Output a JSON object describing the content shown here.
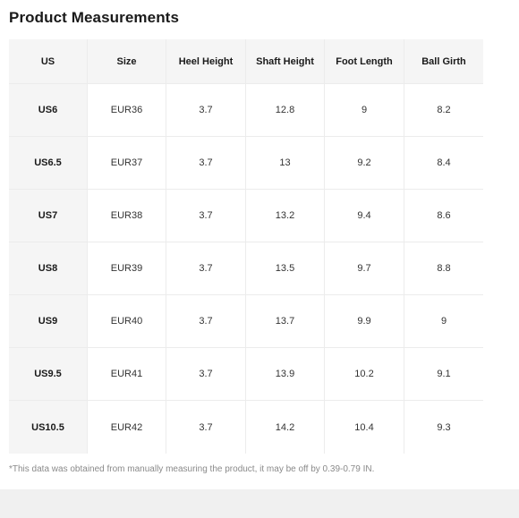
{
  "title": "Product Measurements",
  "table": {
    "headers": [
      "US",
      "Size",
      "Heel Height",
      "Shaft Height",
      "Foot Length",
      "Ball Girth"
    ],
    "rows": [
      [
        "US6",
        "EUR36",
        "3.7",
        "12.8",
        "9",
        "8.2"
      ],
      [
        "US6.5",
        "EUR37",
        "3.7",
        "13",
        "9.2",
        "8.4"
      ],
      [
        "US7",
        "EUR38",
        "3.7",
        "13.2",
        "9.4",
        "8.6"
      ],
      [
        "US8",
        "EUR39",
        "3.7",
        "13.5",
        "9.7",
        "8.8"
      ],
      [
        "US9",
        "EUR40",
        "3.7",
        "13.7",
        "9.9",
        "9"
      ],
      [
        "US9.5",
        "EUR41",
        "3.7",
        "13.9",
        "10.2",
        "9.1"
      ],
      [
        "US10.5",
        "EUR42",
        "3.7",
        "14.2",
        "10.4",
        "9.3"
      ]
    ]
  },
  "note": "*This data was obtained from manually measuring the product, it may be off by 0.39-0.79 IN."
}
